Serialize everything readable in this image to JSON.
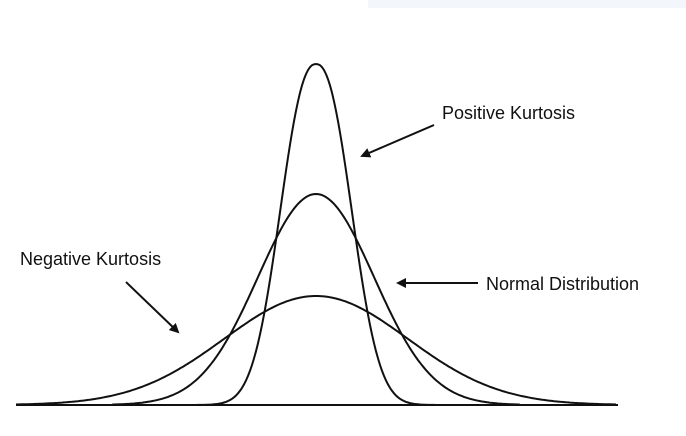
{
  "labels": {
    "positive_kurtosis": "Positive Kurtosis",
    "normal_distribution": "Normal Distribution",
    "negative_kurtosis": "Negative Kurtosis"
  },
  "colors": {
    "ink": "#111111",
    "background": "#ffffff",
    "top_strip": "#f3f6fb"
  }
}
